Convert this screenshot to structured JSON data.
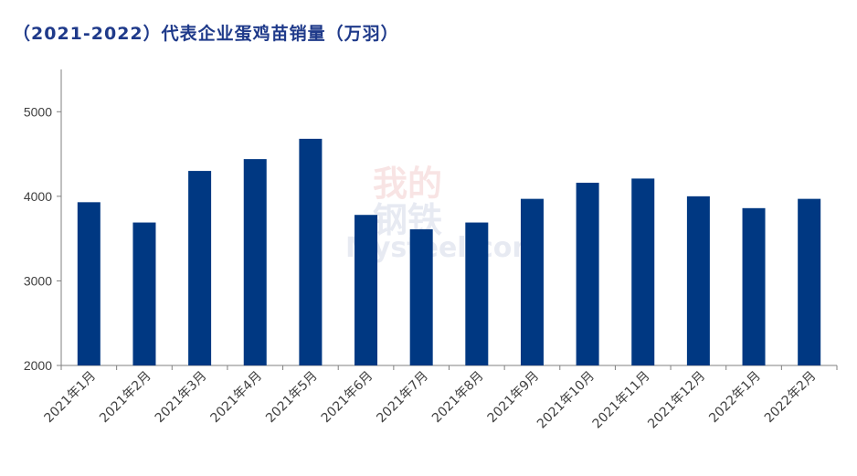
{
  "title": "（2021-2022）代表企业蛋鸡苗销量（万羽）",
  "watermark": {
    "top": "我的",
    "middle": "钢铁",
    "bottom": "Mysteel.com"
  },
  "colors": {
    "bar": "#003882",
    "axis": "#808080",
    "title": "#1f3a8a"
  },
  "chart_data": {
    "type": "bar",
    "title": "（2021-2022）代表企业蛋鸡苗销量（万羽）",
    "xlabel": "",
    "ylabel": "",
    "ylim": [
      2000,
      5500
    ],
    "yticks": [
      2000,
      3000,
      4000,
      5000
    ],
    "grid": false,
    "legend": "none",
    "categories": [
      "2021年1月",
      "2021年2月",
      "2021年3月",
      "2021年4月",
      "2021年5月",
      "2021年6月",
      "2021年7月",
      "2021年8月",
      "2021年9月",
      "2021年10月",
      "2021年11月",
      "2021年12月",
      "2022年1月",
      "2022年2月"
    ],
    "values": [
      3930,
      3690,
      4300,
      4440,
      4680,
      3780,
      3610,
      3690,
      3970,
      4160,
      4210,
      4000,
      3860,
      3970
    ]
  }
}
